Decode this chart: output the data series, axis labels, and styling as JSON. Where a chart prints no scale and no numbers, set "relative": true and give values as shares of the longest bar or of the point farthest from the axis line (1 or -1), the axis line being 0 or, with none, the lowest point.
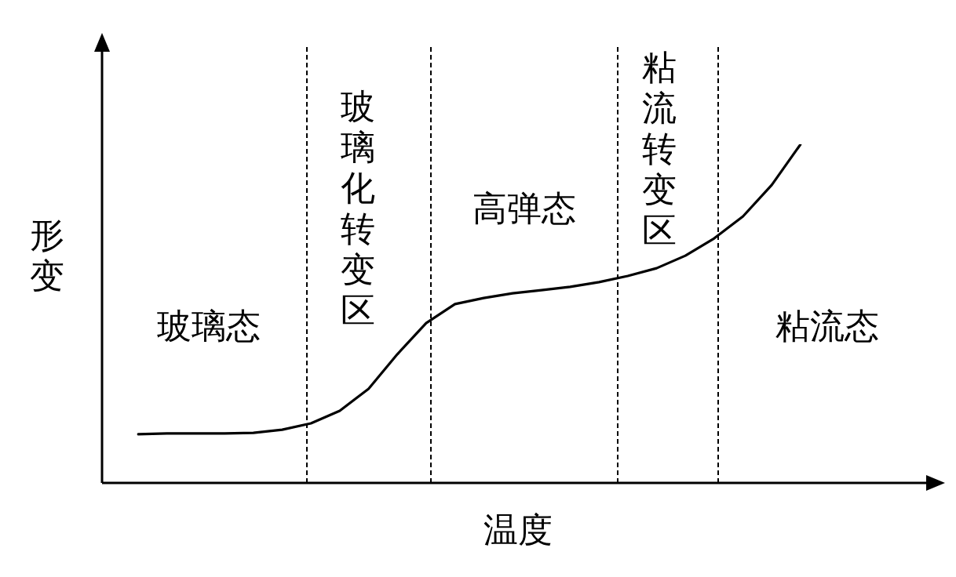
{
  "chart_data": {
    "type": "line",
    "xlabel": "温度",
    "ylabel": "形变",
    "relative": true,
    "marker": "none",
    "line_style": "solid",
    "categories": [
      null,
      null,
      null,
      null,
      null,
      null,
      null,
      null,
      null,
      null,
      null,
      null,
      null,
      null,
      null,
      null,
      null,
      null,
      null,
      null,
      null,
      null,
      null,
      null
    ],
    "series": [
      {
        "color": "#000000",
        "values": [
          0.144,
          0.146,
          0.146,
          0.146,
          0.148,
          0.157,
          0.176,
          0.213,
          0.278,
          0.38,
          0.472,
          0.528,
          0.546,
          0.56,
          0.569,
          0.579,
          0.593,
          0.611,
          0.634,
          0.671,
          0.722,
          0.787,
          0.88,
          1
        ]
      }
    ],
    "annotations": [
      "玻璃态",
      "玻璃化转变区",
      "高弹态",
      "粘流转变区",
      "粘流态"
    ]
  }
}
